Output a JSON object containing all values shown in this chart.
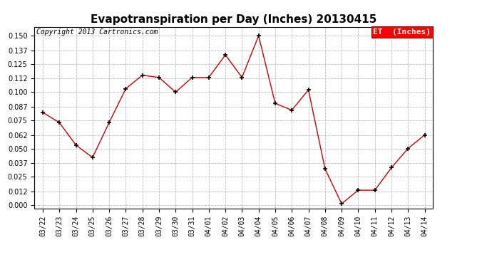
{
  "title": "Evapotranspiration per Day (Inches) 20130415",
  "copyright_text": "Copyright 2013 Cartronics.com",
  "legend_label": "ET  (Inches)",
  "x_labels": [
    "03/22",
    "03/23",
    "03/24",
    "03/25",
    "03/26",
    "03/27",
    "03/28",
    "03/29",
    "03/30",
    "03/31",
    "04/01",
    "04/02",
    "04/03",
    "04/04",
    "04/05",
    "04/06",
    "04/07",
    "04/08",
    "04/09",
    "04/10",
    "04/11",
    "04/12",
    "04/13",
    "04/14"
  ],
  "y_values": [
    0.082,
    0.073,
    0.053,
    0.042,
    0.073,
    0.103,
    0.115,
    0.113,
    0.1,
    0.113,
    0.113,
    0.133,
    0.113,
    0.15,
    0.09,
    0.084,
    0.102,
    0.032,
    0.001,
    0.013,
    0.013,
    0.033,
    0.05,
    0.062
  ],
  "y_ticks": [
    0.0,
    0.012,
    0.025,
    0.037,
    0.05,
    0.062,
    0.075,
    0.087,
    0.1,
    0.112,
    0.125,
    0.137,
    0.15
  ],
  "line_color": "#cc0000",
  "marker_color": "#000000",
  "bg_color": "#ffffff",
  "grid_color": "#bbbbbb",
  "title_fontsize": 11,
  "label_fontsize": 7,
  "copyright_fontsize": 7,
  "legend_fontsize": 8,
  "ylim": [
    -0.003,
    0.158
  ]
}
